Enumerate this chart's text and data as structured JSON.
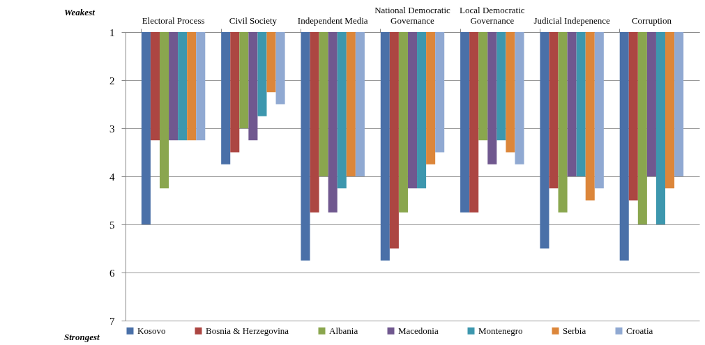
{
  "chart_data": {
    "type": "bar",
    "categories": [
      "Electoral Process",
      "Civil Society",
      "Independent Media",
      "National Democratic Governance",
      "Local Democratic Governance",
      "Judicial Indepenence",
      "Corruption"
    ],
    "series": [
      {
        "name": "Kosovo",
        "color": "#4a70a8",
        "values": [
          5,
          3.75,
          5.75,
          5.75,
          4.75,
          5.5,
          5.75
        ]
      },
      {
        "name": "Bosnia & Herzegovina",
        "color": "#ac4642",
        "values": [
          3.25,
          3.5,
          4.75,
          5.5,
          4.75,
          4.25,
          4.5
        ]
      },
      {
        "name": "Albania",
        "color": "#8aa64e",
        "values": [
          4.25,
          3,
          4,
          4.75,
          3.25,
          4.75,
          5
        ]
      },
      {
        "name": "Macedonia",
        "color": "#70588f",
        "values": [
          3.25,
          3.25,
          4.75,
          4.25,
          3.75,
          4,
          4
        ]
      },
      {
        "name": "Montenegro",
        "color": "#3d97ae",
        "values": [
          3.25,
          2.75,
          4.25,
          4.25,
          3.25,
          4,
          5
        ]
      },
      {
        "name": "Serbia",
        "color": "#dc863a",
        "values": [
          3.25,
          2.25,
          4,
          3.75,
          3.5,
          4.5,
          4.25
        ]
      },
      {
        "name": "Croatia",
        "color": "#90a9d2",
        "values": [
          3.25,
          2.5,
          4,
          3.5,
          3.75,
          4.25,
          4
        ]
      }
    ],
    "ylim": [
      7,
      1
    ],
    "yticks": [
      1,
      2,
      3,
      4,
      5,
      6,
      7
    ],
    "grid": "y",
    "legend": "bottom",
    "annotations": [
      "Weakest",
      "Strongest"
    ]
  }
}
